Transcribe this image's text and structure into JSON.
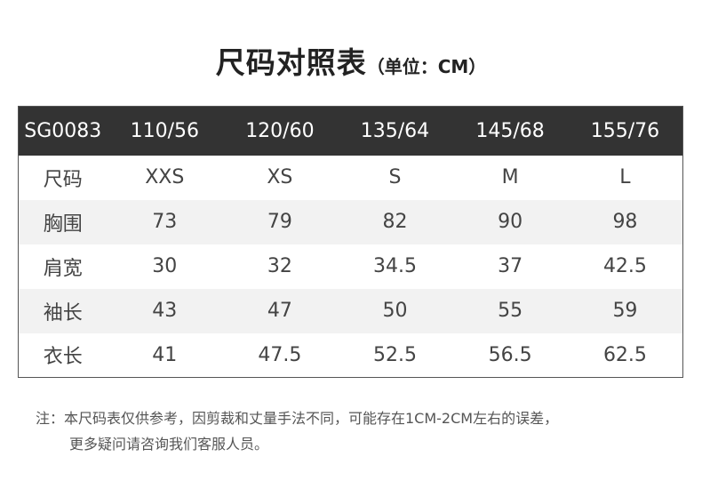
{
  "title": {
    "main": "尺码对照表",
    "unit": "（单位：CM）"
  },
  "table": {
    "header": [
      "SG0083",
      "110/56",
      "120/60",
      "135/64",
      "145/68",
      "155/76"
    ],
    "rows": [
      [
        "尺码",
        "XXS",
        "XS",
        "S",
        "M",
        "L"
      ],
      [
        "胸围",
        "73",
        "79",
        "82",
        "90",
        "98"
      ],
      [
        "肩宽",
        "30",
        "32",
        "34.5",
        "37",
        "42.5"
      ],
      [
        "袖长",
        "43",
        "47",
        "50",
        "55",
        "59"
      ],
      [
        "衣长",
        "41",
        "47.5",
        "52.5",
        "56.5",
        "62.5"
      ]
    ]
  },
  "note": {
    "line1": "注：本尺码表仅供参考，因剪裁和丈量手法不同，可能存在1CM-2CM左右的误差，",
    "line2": "更多疑问请咨询我们客服人员。"
  }
}
